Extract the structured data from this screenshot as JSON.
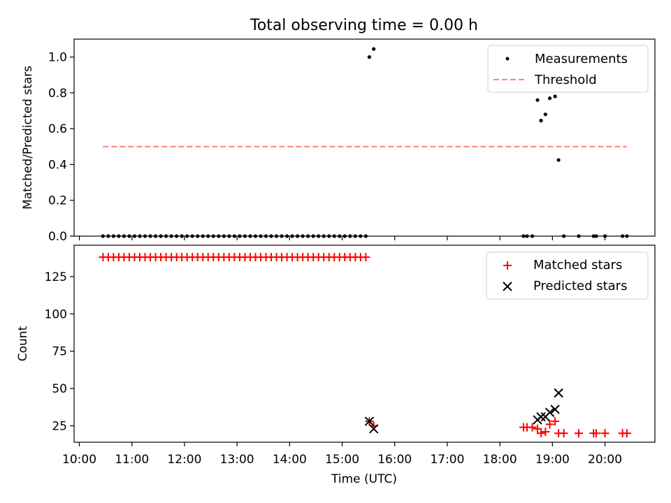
{
  "chart_data": [
    {
      "type": "scatter",
      "title": "Total observing time = 0.00 h",
      "ylabel": "Matched/Predicted stars",
      "xlabel": "",
      "ylim": [
        0,
        1.1
      ],
      "yticks": [
        "0.0",
        "0.2",
        "0.4",
        "0.6",
        "0.8",
        "1.0"
      ],
      "ytick_values": [
        0,
        0.2,
        0.4,
        0.6,
        0.8,
        1.0
      ],
      "legend_position": "top-right",
      "legend": [
        "Measurements",
        "Threshold"
      ],
      "series": [
        {
          "name": "Measurements",
          "marker": "dot",
          "color": "#000000",
          "points": [
            [
              "10:27",
              0
            ],
            [
              "10:33",
              0
            ],
            [
              "10:39",
              0
            ],
            [
              "10:45",
              0
            ],
            [
              "10:51",
              0
            ],
            [
              "10:57",
              0
            ],
            [
              "11:03",
              0
            ],
            [
              "11:09",
              0
            ],
            [
              "11:15",
              0
            ],
            [
              "11:21",
              0
            ],
            [
              "11:27",
              0
            ],
            [
              "11:33",
              0
            ],
            [
              "11:39",
              0
            ],
            [
              "11:45",
              0
            ],
            [
              "11:51",
              0
            ],
            [
              "11:57",
              0
            ],
            [
              "12:03",
              0
            ],
            [
              "12:09",
              0
            ],
            [
              "12:15",
              0
            ],
            [
              "12:21",
              0
            ],
            [
              "12:27",
              0
            ],
            [
              "12:33",
              0
            ],
            [
              "12:39",
              0
            ],
            [
              "12:45",
              0
            ],
            [
              "12:51",
              0
            ],
            [
              "12:57",
              0
            ],
            [
              "13:03",
              0
            ],
            [
              "13:09",
              0
            ],
            [
              "13:15",
              0
            ],
            [
              "13:21",
              0
            ],
            [
              "13:27",
              0
            ],
            [
              "13:33",
              0
            ],
            [
              "13:39",
              0
            ],
            [
              "13:45",
              0
            ],
            [
              "13:51",
              0
            ],
            [
              "13:57",
              0
            ],
            [
              "14:03",
              0
            ],
            [
              "14:09",
              0
            ],
            [
              "14:15",
              0
            ],
            [
              "14:21",
              0
            ],
            [
              "14:27",
              0
            ],
            [
              "14:33",
              0
            ],
            [
              "14:39",
              0
            ],
            [
              "14:45",
              0
            ],
            [
              "14:51",
              0
            ],
            [
              "14:57",
              0
            ],
            [
              "15:03",
              0
            ],
            [
              "15:09",
              0
            ],
            [
              "15:15",
              0
            ],
            [
              "15:21",
              0
            ],
            [
              "15:27",
              0
            ],
            [
              "15:31",
              1.0
            ],
            [
              "15:36",
              1.045
            ],
            [
              "18:27",
              0
            ],
            [
              "18:31",
              0
            ],
            [
              "18:37",
              0
            ],
            [
              "18:43",
              0.76
            ],
            [
              "18:47",
              0.645
            ],
            [
              "18:52",
              0.68
            ],
            [
              "18:57",
              0.77
            ],
            [
              "19:03",
              0.78
            ],
            [
              "19:07",
              0.425
            ],
            [
              "19:13",
              0
            ],
            [
              "19:30",
              0
            ],
            [
              "19:47",
              0
            ],
            [
              "19:50",
              0
            ],
            [
              "20:00",
              0
            ],
            [
              "20:20",
              0
            ],
            [
              "20:25",
              0
            ]
          ]
        },
        {
          "name": "Threshold",
          "marker": "dashed-line",
          "color": "#ff7f7f",
          "points": [
            [
              "10:27",
              0.5
            ],
            [
              "20:25",
              0.5
            ]
          ]
        }
      ]
    },
    {
      "type": "scatter",
      "title": "",
      "ylabel": "Count",
      "xlabel": "Time (UTC)",
      "ylim": [
        14,
        146
      ],
      "yticks": [
        "25",
        "50",
        "75",
        "100",
        "125"
      ],
      "ytick_values": [
        25,
        50,
        75,
        100,
        125
      ],
      "xticks": [
        "10:00",
        "11:00",
        "12:00",
        "13:00",
        "14:00",
        "15:00",
        "16:00",
        "17:00",
        "18:00",
        "19:00",
        "20:00"
      ],
      "legend_position": "top-right",
      "legend": [
        "Matched stars",
        "Predicted stars"
      ],
      "series": [
        {
          "name": "Matched stars",
          "marker": "plus",
          "color": "#ff0000",
          "points": [
            [
              "10:27",
              138
            ],
            [
              "10:33",
              138
            ],
            [
              "10:39",
              138
            ],
            [
              "10:45",
              138
            ],
            [
              "10:51",
              138
            ],
            [
              "10:57",
              138
            ],
            [
              "11:03",
              138
            ],
            [
              "11:09",
              138
            ],
            [
              "11:15",
              138
            ],
            [
              "11:21",
              138
            ],
            [
              "11:27",
              138
            ],
            [
              "11:33",
              138
            ],
            [
              "11:39",
              138
            ],
            [
              "11:45",
              138
            ],
            [
              "11:51",
              138
            ],
            [
              "11:57",
              138
            ],
            [
              "12:03",
              138
            ],
            [
              "12:09",
              138
            ],
            [
              "12:15",
              138
            ],
            [
              "12:21",
              138
            ],
            [
              "12:27",
              138
            ],
            [
              "12:33",
              138
            ],
            [
              "12:39",
              138
            ],
            [
              "12:45",
              138
            ],
            [
              "12:51",
              138
            ],
            [
              "12:57",
              138
            ],
            [
              "13:03",
              138
            ],
            [
              "13:09",
              138
            ],
            [
              "13:15",
              138
            ],
            [
              "13:21",
              138
            ],
            [
              "13:27",
              138
            ],
            [
              "13:33",
              138
            ],
            [
              "13:39",
              138
            ],
            [
              "13:45",
              138
            ],
            [
              "13:51",
              138
            ],
            [
              "13:57",
              138
            ],
            [
              "14:03",
              138
            ],
            [
              "14:09",
              138
            ],
            [
              "14:15",
              138
            ],
            [
              "14:21",
              138
            ],
            [
              "14:27",
              138
            ],
            [
              "14:33",
              138
            ],
            [
              "14:39",
              138
            ],
            [
              "14:45",
              138
            ],
            [
              "14:51",
              138
            ],
            [
              "14:57",
              138
            ],
            [
              "15:03",
              138
            ],
            [
              "15:09",
              138
            ],
            [
              "15:15",
              138
            ],
            [
              "15:21",
              138
            ],
            [
              "15:27",
              138
            ],
            [
              "15:31",
              28
            ],
            [
              "15:36",
              25
            ],
            [
              "18:27",
              24
            ],
            [
              "18:31",
              24
            ],
            [
              "18:37",
              24
            ],
            [
              "18:43",
              23
            ],
            [
              "18:47",
              20
            ],
            [
              "18:52",
              21
            ],
            [
              "18:57",
              26
            ],
            [
              "19:03",
              28
            ],
            [
              "19:07",
              20
            ],
            [
              "19:13",
              20
            ],
            [
              "19:30",
              20
            ],
            [
              "19:47",
              20
            ],
            [
              "19:50",
              20
            ],
            [
              "20:00",
              20
            ],
            [
              "20:20",
              20
            ],
            [
              "20:25",
              20
            ]
          ]
        },
        {
          "name": "Predicted stars",
          "marker": "x",
          "color": "#000000",
          "points": [
            [
              "15:31",
              28
            ],
            [
              "15:36",
              23
            ],
            [
              "18:43",
              29
            ],
            [
              "18:47",
              31
            ],
            [
              "18:52",
              31
            ],
            [
              "18:57",
              34
            ],
            [
              "19:03",
              36
            ],
            [
              "19:07",
              47
            ]
          ]
        }
      ]
    }
  ]
}
